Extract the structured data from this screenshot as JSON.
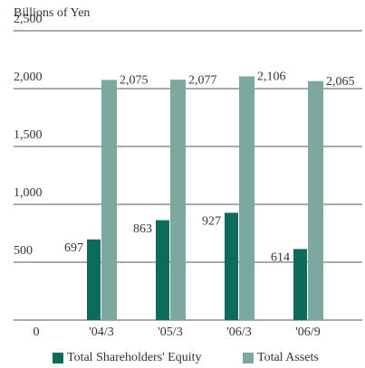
{
  "chart_data": {
    "type": "bar",
    "ylabel": "Billions of Yen",
    "categories": [
      "'04/3",
      "'05/3",
      "'06/3",
      "'06/9"
    ],
    "series": [
      {
        "name": "Total Shareholders' Equity",
        "color": "#0d6b5c",
        "values": [
          697,
          863,
          927,
          614
        ]
      },
      {
        "name": "Total Assets",
        "color": "#7ca89f",
        "values": [
          2075,
          2077,
          2106,
          2065
        ],
        "value_labels": [
          "2,075",
          "2,077",
          "2,106",
          "2,065"
        ]
      }
    ],
    "ylim": [
      0,
      2500
    ],
    "yticks": [
      0,
      500,
      {
        "value": 1000,
        "label": "1,000"
      },
      {
        "value": 1500,
        "label": "1,500"
      },
      {
        "value": 2000,
        "label": "2,000"
      },
      {
        "value": 2500,
        "label": "2,500"
      }
    ],
    "grid": true,
    "legend": "bottom"
  }
}
